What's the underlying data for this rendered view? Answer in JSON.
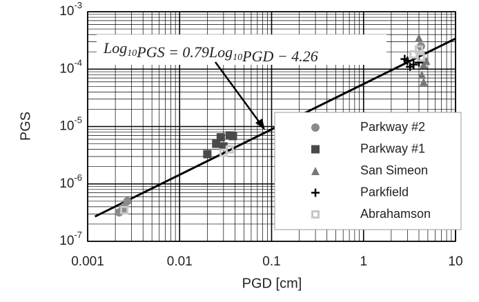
{
  "chart_data": {
    "type": "scatter",
    "x_label": "PGD [cm]",
    "y_label": "PGS",
    "log_x": true,
    "log_y": true,
    "grid": true,
    "xlim": [
      0.001,
      10
    ],
    "ylim": [
      1e-07,
      0.001
    ],
    "xticks": [
      0.001,
      0.01,
      0.1,
      1,
      10
    ],
    "yticks": [
      {
        "value": 1e-07,
        "label": "10-7"
      },
      {
        "value": 1e-06,
        "label": "10-6"
      },
      {
        "value": 1e-05,
        "label": "10-5"
      },
      {
        "value": 0.0001,
        "label": "10-4"
      },
      {
        "value": 0.001,
        "label": "10-3"
      }
    ],
    "legend_position": "lower right",
    "annotation": "Log10PGS = 0.79Log10PGD − 4.26",
    "fit_line": {
      "color": "#000000",
      "x": [
        0.0012,
        10
      ],
      "values": [
        2.7e-07,
        0.00034
      ]
    },
    "series": [
      {
        "name": "Parkway #2",
        "marker": "circle",
        "color": "#8a8a8a",
        "x": [
          0.0022,
          0.0024,
          0.0025,
          0.0027,
          4.2
        ],
        "values": [
          3.2e-07,
          3.5e-07,
          4e-07,
          5e-07,
          0.00025
        ]
      },
      {
        "name": "Parkway #1",
        "marker": "square",
        "color": "#4a4a4a",
        "x": [
          0.02,
          0.025,
          0.028,
          0.03,
          0.035,
          0.038
        ],
        "values": [
          3.3e-06,
          5e-06,
          6.5e-06,
          4.5e-06,
          7e-06,
          6.8e-06
        ]
      },
      {
        "name": "San Simeon",
        "marker": "triangle",
        "color": "#777777",
        "x": [
          4,
          4.3,
          4.5,
          4.5,
          4.8
        ],
        "values": [
          0.00035,
          8e-05,
          6e-05,
          0.00012,
          0.00014
        ]
      },
      {
        "name": "Parkfield",
        "marker": "plus",
        "color": "#000000",
        "x": [
          2.8,
          3,
          3.2,
          3.5,
          4
        ],
        "values": [
          0.00015,
          0.00014,
          0.00011,
          0.00012,
          0.00013
        ]
      },
      {
        "name": "Abrahamson",
        "marker": "square-open",
        "color": "#c8c8c8",
        "x": [
          0.0025,
          0.03,
          0.035,
          3.5,
          4,
          4.2
        ],
        "values": [
          3.5e-07,
          3.5e-06,
          4e-06,
          0.00018,
          0.00022,
          0.00016
        ]
      }
    ]
  }
}
